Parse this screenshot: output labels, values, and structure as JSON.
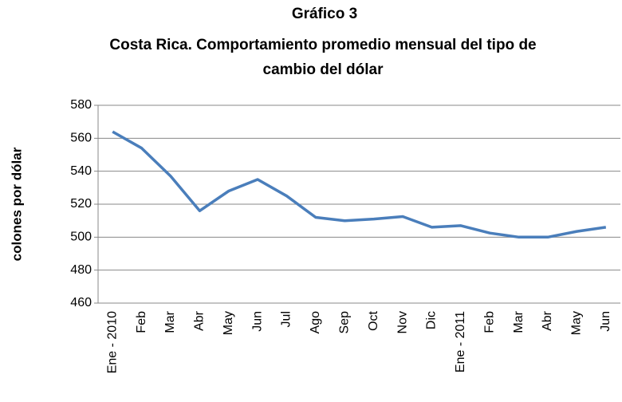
{
  "chart_data": {
    "type": "line",
    "title": "Gráfico 3",
    "subtitle": "Costa Rica.  Comportamiento promedio mensual del tipo de cambio del dólar",
    "y_label": "colones por dólar",
    "categories": [
      "Ene - 2010",
      "Feb",
      "Mar",
      "Abr",
      "May",
      "Jun",
      "Jul",
      "Ago",
      "Sep",
      "Oct",
      "Nov",
      "Dic",
      "Ene - 2011",
      "Feb",
      "Mar",
      "Abr",
      "May",
      "Jun"
    ],
    "values": [
      564,
      554,
      537,
      516,
      528,
      535,
      525,
      512,
      510,
      511,
      512.5,
      506,
      507,
      502.5,
      500,
      500,
      503.5,
      506
    ],
    "color": "#4a7ebb",
    "ylim": [
      460,
      580
    ],
    "yticks": [
      460,
      480,
      500,
      520,
      540,
      560,
      580
    ],
    "grid": true
  }
}
